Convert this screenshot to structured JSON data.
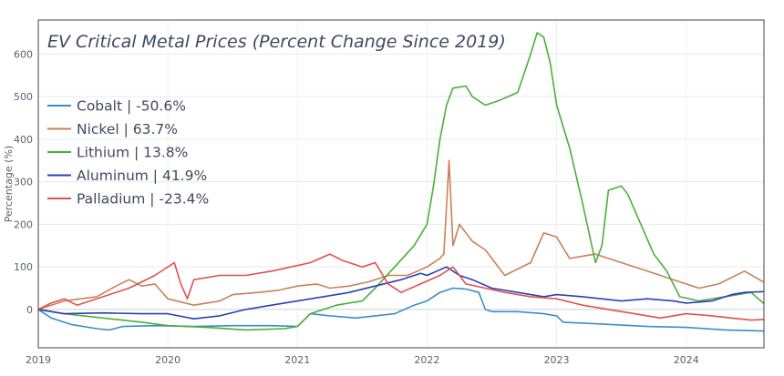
{
  "chart_data": {
    "type": "line",
    "title": "EV Critical Metal Prices (Percent Change Since 2019)",
    "xlabel": "",
    "ylabel": "Percentage (%)",
    "xlim": [
      2019.0,
      2024.6
    ],
    "ylim": [
      -90,
      680
    ],
    "x_ticks": [
      "2019",
      "2020",
      "2021",
      "2022",
      "2023",
      "2024"
    ],
    "y_ticks": [
      0,
      100,
      200,
      300,
      400,
      500,
      600
    ],
    "grid": true,
    "legend_position": "top-left",
    "series": [
      {
        "name": "Cobalt",
        "legend_label": "Cobalt | -50.6%",
        "color": "#3a8ec6",
        "points": [
          [
            2019.0,
            0
          ],
          [
            2019.1,
            -20
          ],
          [
            2019.25,
            -35
          ],
          [
            2019.45,
            -45
          ],
          [
            2019.55,
            -48
          ],
          [
            2019.65,
            -40
          ],
          [
            2019.9,
            -38
          ],
          [
            2020.2,
            -40
          ],
          [
            2020.5,
            -38
          ],
          [
            2020.8,
            -38
          ],
          [
            2021.0,
            -40
          ],
          [
            2021.1,
            -10
          ],
          [
            2021.25,
            -15
          ],
          [
            2021.45,
            -20
          ],
          [
            2021.6,
            -15
          ],
          [
            2021.75,
            -10
          ],
          [
            2021.9,
            10
          ],
          [
            2022.0,
            20
          ],
          [
            2022.1,
            40
          ],
          [
            2022.2,
            50
          ],
          [
            2022.3,
            48
          ],
          [
            2022.4,
            40
          ],
          [
            2022.45,
            0
          ],
          [
            2022.5,
            -5
          ],
          [
            2022.7,
            -5
          ],
          [
            2022.9,
            -10
          ],
          [
            2023.0,
            -15
          ],
          [
            2023.05,
            -30
          ],
          [
            2023.4,
            -35
          ],
          [
            2023.7,
            -40
          ],
          [
            2024.0,
            -42
          ],
          [
            2024.3,
            -48
          ],
          [
            2024.6,
            -50.6
          ]
        ]
      },
      {
        "name": "Nickel",
        "legend_label": "Nickel | 63.7%",
        "color": "#c98158",
        "points": [
          [
            2019.0,
            0
          ],
          [
            2019.2,
            20
          ],
          [
            2019.45,
            30
          ],
          [
            2019.6,
            55
          ],
          [
            2019.7,
            70
          ],
          [
            2019.8,
            55
          ],
          [
            2019.9,
            60
          ],
          [
            2020.0,
            25
          ],
          [
            2020.2,
            10
          ],
          [
            2020.4,
            20
          ],
          [
            2020.5,
            35
          ],
          [
            2020.7,
            40
          ],
          [
            2020.85,
            45
          ],
          [
            2021.0,
            55
          ],
          [
            2021.15,
            60
          ],
          [
            2021.25,
            50
          ],
          [
            2021.4,
            55
          ],
          [
            2021.55,
            65
          ],
          [
            2021.7,
            80
          ],
          [
            2021.85,
            80
          ],
          [
            2022.0,
            100
          ],
          [
            2022.1,
            120
          ],
          [
            2022.13,
            130
          ],
          [
            2022.17,
            350
          ],
          [
            2022.2,
            150
          ],
          [
            2022.25,
            200
          ],
          [
            2022.3,
            180
          ],
          [
            2022.35,
            160
          ],
          [
            2022.45,
            140
          ],
          [
            2022.6,
            80
          ],
          [
            2022.8,
            110
          ],
          [
            2022.9,
            180
          ],
          [
            2023.0,
            170
          ],
          [
            2023.1,
            120
          ],
          [
            2023.3,
            130
          ],
          [
            2023.5,
            110
          ],
          [
            2023.7,
            90
          ],
          [
            2023.9,
            70
          ],
          [
            2024.0,
            60
          ],
          [
            2024.1,
            50
          ],
          [
            2024.25,
            60
          ],
          [
            2024.45,
            90
          ],
          [
            2024.6,
            63.7
          ]
        ]
      },
      {
        "name": "Lithium",
        "legend_label": "Lithium | 13.8%",
        "color": "#4bae3a",
        "points": [
          [
            2019.0,
            0
          ],
          [
            2019.2,
            -10
          ],
          [
            2019.5,
            -20
          ],
          [
            2019.8,
            -30
          ],
          [
            2020.0,
            -38
          ],
          [
            2020.3,
            -42
          ],
          [
            2020.6,
            -48
          ],
          [
            2020.9,
            -45
          ],
          [
            2021.0,
            -40
          ],
          [
            2021.1,
            -10
          ],
          [
            2021.3,
            10
          ],
          [
            2021.5,
            20
          ],
          [
            2021.6,
            50
          ],
          [
            2021.75,
            100
          ],
          [
            2021.9,
            150
          ],
          [
            2022.0,
            200
          ],
          [
            2022.05,
            290
          ],
          [
            2022.1,
            400
          ],
          [
            2022.15,
            480
          ],
          [
            2022.2,
            520
          ],
          [
            2022.3,
            525
          ],
          [
            2022.35,
            500
          ],
          [
            2022.45,
            480
          ],
          [
            2022.55,
            490
          ],
          [
            2022.7,
            510
          ],
          [
            2022.8,
            600
          ],
          [
            2022.85,
            650
          ],
          [
            2022.9,
            640
          ],
          [
            2022.95,
            580
          ],
          [
            2023.0,
            480
          ],
          [
            2023.1,
            380
          ],
          [
            2023.2,
            250
          ],
          [
            2023.3,
            110
          ],
          [
            2023.35,
            150
          ],
          [
            2023.4,
            280
          ],
          [
            2023.5,
            290
          ],
          [
            2023.55,
            270
          ],
          [
            2023.65,
            200
          ],
          [
            2023.75,
            130
          ],
          [
            2023.85,
            90
          ],
          [
            2023.95,
            30
          ],
          [
            2024.1,
            20
          ],
          [
            2024.3,
            30
          ],
          [
            2024.5,
            40
          ],
          [
            2024.6,
            13.8
          ]
        ]
      },
      {
        "name": "Aluminum",
        "legend_label": "Aluminum | 41.9%",
        "color": "#2c3fb8",
        "points": [
          [
            2019.0,
            0
          ],
          [
            2019.2,
            -10
          ],
          [
            2019.5,
            -8
          ],
          [
            2019.8,
            -10
          ],
          [
            2020.0,
            -10
          ],
          [
            2020.2,
            -22
          ],
          [
            2020.4,
            -15
          ],
          [
            2020.6,
            0
          ],
          [
            2020.8,
            10
          ],
          [
            2021.0,
            20
          ],
          [
            2021.2,
            30
          ],
          [
            2021.4,
            40
          ],
          [
            2021.6,
            55
          ],
          [
            2021.8,
            70
          ],
          [
            2021.95,
            85
          ],
          [
            2022.0,
            80
          ],
          [
            2022.15,
            100
          ],
          [
            2022.25,
            80
          ],
          [
            2022.35,
            70
          ],
          [
            2022.5,
            50
          ],
          [
            2022.7,
            40
          ],
          [
            2022.9,
            30
          ],
          [
            2023.0,
            35
          ],
          [
            2023.2,
            30
          ],
          [
            2023.5,
            20
          ],
          [
            2023.7,
            25
          ],
          [
            2023.9,
            20
          ],
          [
            2024.0,
            15
          ],
          [
            2024.2,
            20
          ],
          [
            2024.35,
            35
          ],
          [
            2024.45,
            40
          ],
          [
            2024.6,
            41.9
          ]
        ]
      },
      {
        "name": "Palladium",
        "legend_label": "Palladium | -23.4%",
        "color": "#e0514e",
        "points": [
          [
            2019.0,
            0
          ],
          [
            2019.1,
            15
          ],
          [
            2019.2,
            25
          ],
          [
            2019.3,
            10
          ],
          [
            2019.5,
            30
          ],
          [
            2019.7,
            50
          ],
          [
            2019.9,
            80
          ],
          [
            2020.05,
            110
          ],
          [
            2020.1,
            60
          ],
          [
            2020.15,
            25
          ],
          [
            2020.2,
            70
          ],
          [
            2020.4,
            80
          ],
          [
            2020.6,
            80
          ],
          [
            2020.8,
            90
          ],
          [
            2020.95,
            100
          ],
          [
            2021.1,
            110
          ],
          [
            2021.25,
            130
          ],
          [
            2021.35,
            115
          ],
          [
            2021.5,
            100
          ],
          [
            2021.6,
            110
          ],
          [
            2021.7,
            60
          ],
          [
            2021.8,
            40
          ],
          [
            2021.95,
            60
          ],
          [
            2022.1,
            80
          ],
          [
            2022.2,
            100
          ],
          [
            2022.3,
            60
          ],
          [
            2022.45,
            50
          ],
          [
            2022.6,
            40
          ],
          [
            2022.8,
            30
          ],
          [
            2023.0,
            25
          ],
          [
            2023.2,
            10
          ],
          [
            2023.4,
            0
          ],
          [
            2023.6,
            -10
          ],
          [
            2023.8,
            -20
          ],
          [
            2024.0,
            -10
          ],
          [
            2024.2,
            -15
          ],
          [
            2024.35,
            -20
          ],
          [
            2024.5,
            -25
          ],
          [
            2024.6,
            -23.4
          ]
        ]
      }
    ]
  }
}
